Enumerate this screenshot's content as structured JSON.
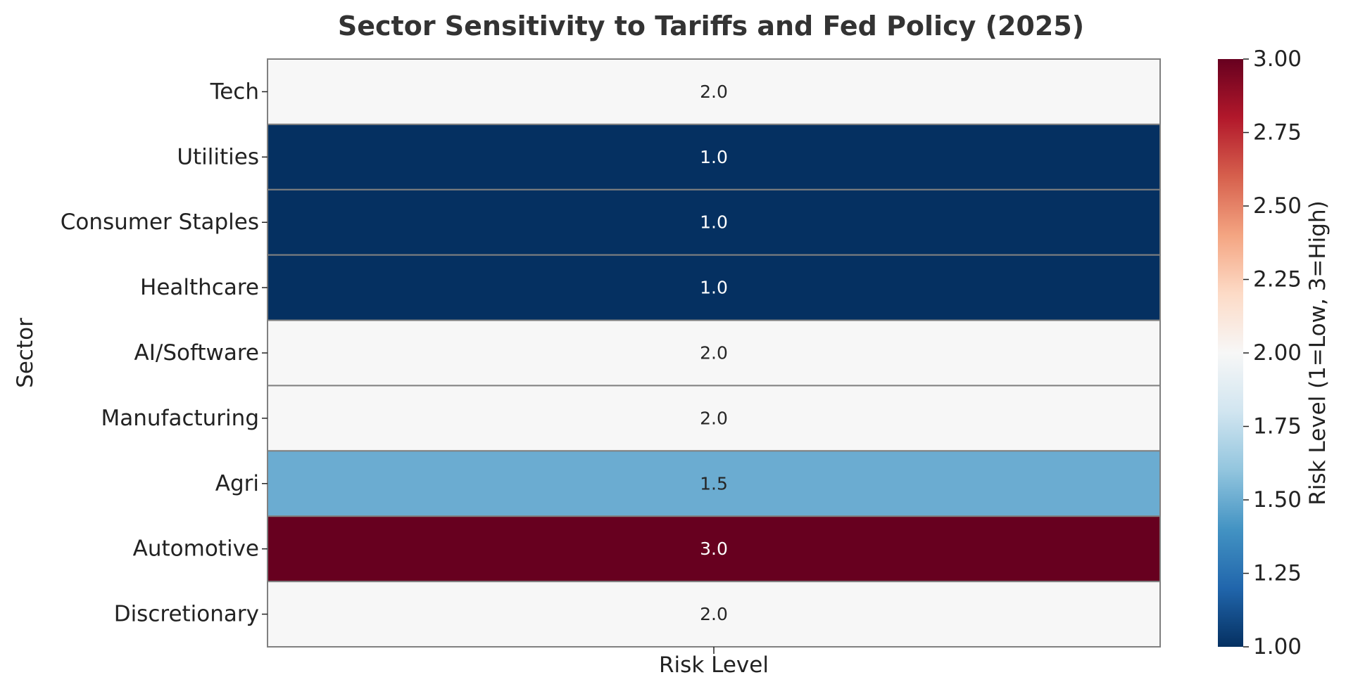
{
  "chart_data": {
    "type": "heatmap",
    "title": "Sector Sensitivity to Tariffs and Fed Policy (2025)",
    "xlabel": "Risk Level",
    "ylabel": "Sector",
    "columns": [
      "Risk Level"
    ],
    "rows": [
      "Tech",
      "Utilities",
      "Consumer Staples",
      "Healthcare",
      "AI/Software",
      "Manufacturing",
      "Agri",
      "Automotive",
      "Discretionary"
    ],
    "values": [
      2.0,
      1.0,
      1.0,
      1.0,
      2.0,
      2.0,
      1.5,
      3.0,
      2.0
    ],
    "value_labels": [
      "2.0",
      "1.0",
      "1.0",
      "1.0",
      "2.0",
      "2.0",
      "1.5",
      "3.0",
      "2.0"
    ],
    "colorbar": {
      "label": "Risk Level (1=Low, 3=High)",
      "range": [
        1.0,
        3.0
      ],
      "ticks": [
        1.0,
        1.25,
        1.5,
        1.75,
        2.0,
        2.25,
        2.5,
        2.75,
        3.0
      ],
      "tick_labels": [
        "1.00",
        "1.25",
        "1.50",
        "1.75",
        "2.00",
        "2.25",
        "2.50",
        "2.75",
        "3.00"
      ],
      "colormap": "RdBu_r",
      "color_stops": [
        "#053061",
        "#2166ac",
        "#4393c3",
        "#92c5de",
        "#d1e5f0",
        "#f7f7f7",
        "#fddbc7",
        "#f4a582",
        "#d6604d",
        "#b2182b",
        "#67001f"
      ]
    },
    "cell_edge_color": "#808080",
    "grid": false
  }
}
